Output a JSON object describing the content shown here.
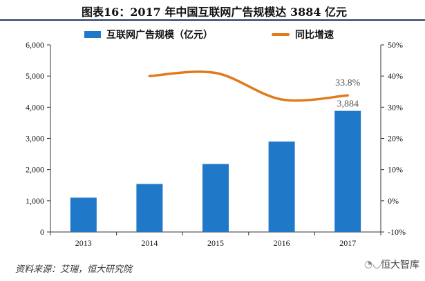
{
  "title": "图表16：2017 年中国互联网广告规模达 3884 亿元",
  "source": "资料来源：艾瑞，恒大研究院",
  "watermark": {
    "icon": "wechat-icon",
    "text": "恒大智库"
  },
  "colors": {
    "bar": "#1f78c8",
    "line": "#e07b1d",
    "title_rule": "#1f3864"
  },
  "chart_data": {
    "type": "bar",
    "categories": [
      "2013",
      "2014",
      "2015",
      "2016",
      "2017"
    ],
    "series": [
      {
        "name": "互联网广告规模（亿元）",
        "type": "bar",
        "axis": "left",
        "values": [
          1100,
          1540,
          2180,
          2900,
          3884
        ]
      },
      {
        "name": "同比增速",
        "type": "line",
        "axis": "right",
        "smooth": true,
        "values": [
          null,
          40.0,
          41.0,
          32.5,
          33.8
        ]
      }
    ],
    "y_left": {
      "min": 0,
      "max": 6000,
      "ticks": [
        0,
        1000,
        2000,
        3000,
        4000,
        5000,
        6000
      ],
      "tick_labels": [
        "0",
        "1,000",
        "2,000",
        "3,000",
        "4,000",
        "5,000",
        "6,000"
      ]
    },
    "y_right": {
      "min": -10,
      "max": 50,
      "ticks": [
        -10,
        0,
        10,
        20,
        30,
        40,
        50
      ],
      "tick_labels": [
        "-10%",
        "0%",
        "10%",
        "20%",
        "30%",
        "40%",
        "50%"
      ]
    },
    "annotations": [
      {
        "category": "2017",
        "series": "同比增速",
        "text": "33.8%"
      },
      {
        "category": "2017",
        "series": "互联网广告规模（亿元）",
        "text": "3,884"
      }
    ],
    "legend": "top"
  }
}
